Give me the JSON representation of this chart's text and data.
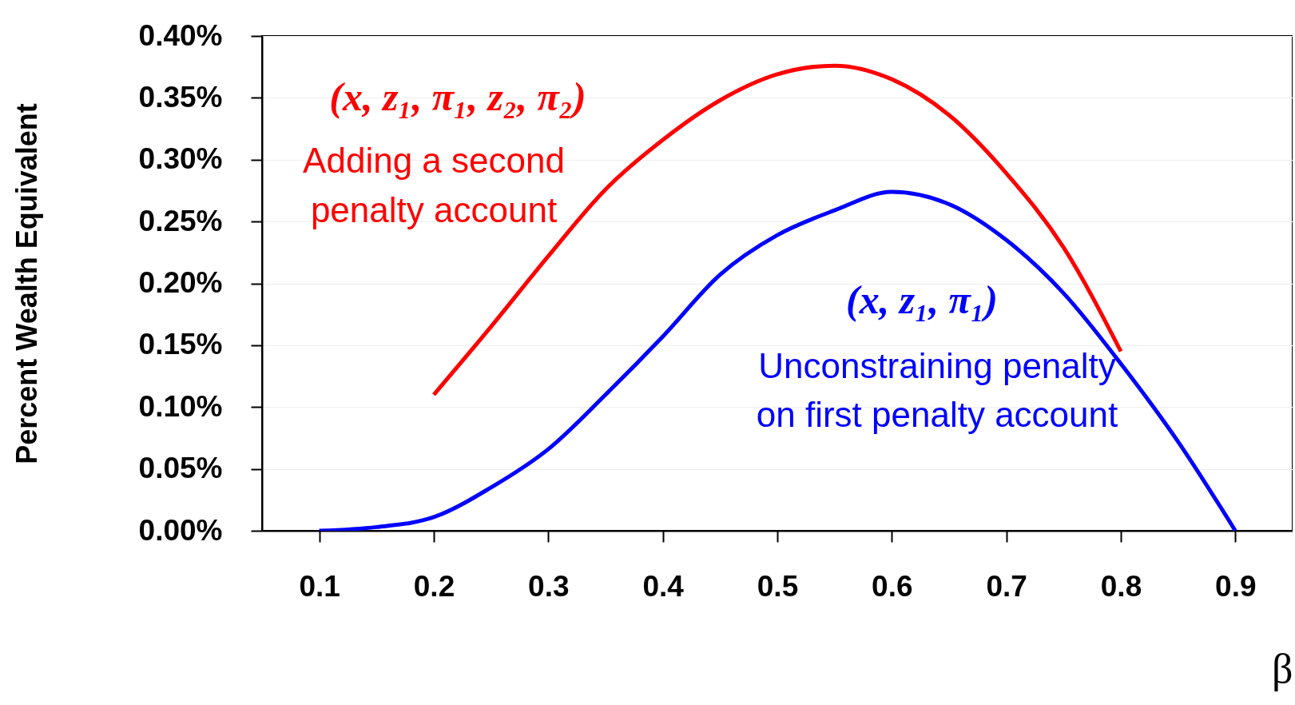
{
  "chart_data": {
    "type": "line",
    "xlabel": "β",
    "ylabel": "Percent Wealth Equivalent",
    "xlim": [
      0.05,
      0.95
    ],
    "xticks": [
      0.1,
      0.2,
      0.3,
      0.4,
      0.5,
      0.6,
      0.7,
      0.8,
      0.9
    ],
    "ylim": [
      0,
      0.4
    ],
    "yticks": [
      {
        "value": 0,
        "label": "0.00%"
      },
      {
        "value": 0.05,
        "label": "0.05%"
      },
      {
        "value": 0.1,
        "label": "0.10%"
      },
      {
        "value": 0.15,
        "label": "0.15%"
      },
      {
        "value": 0.2,
        "label": "0.20%"
      },
      {
        "value": 0.25,
        "label": "0.25%"
      },
      {
        "value": 0.3,
        "label": "0.30%"
      },
      {
        "value": 0.35,
        "label": "0.35%"
      },
      {
        "value": 0.4,
        "label": "0.40%"
      }
    ],
    "grid": "y",
    "legend": false,
    "marker": "none",
    "line_style": "solid",
    "series": [
      {
        "color": "#ff0000",
        "x": [
          0.2,
          0.25,
          0.3,
          0.35,
          0.4,
          0.45,
          0.5,
          0.55,
          0.6,
          0.65,
          0.7,
          0.75,
          0.8
        ],
        "values": [
          0.11,
          0.165,
          0.222,
          0.276,
          0.316,
          0.348,
          0.369,
          0.376,
          0.365,
          0.336,
          0.289,
          0.229,
          0.145
        ]
      },
      {
        "color": "#0000ff",
        "x": [
          0.1,
          0.15,
          0.2,
          0.25,
          0.3,
          0.35,
          0.4,
          0.45,
          0.5,
          0.55,
          0.6,
          0.65,
          0.7,
          0.75,
          0.8,
          0.85,
          0.9
        ],
        "values": [
          0.0,
          0.003,
          0.011,
          0.035,
          0.066,
          0.11,
          0.157,
          0.207,
          0.239,
          0.259,
          0.274,
          0.264,
          0.235,
          0.192,
          0.135,
          0.072,
          0.0
        ]
      }
    ],
    "annotations": [
      "(x, z₁, π₁, z₂, π₂)",
      "Adding a second",
      "penalty account",
      "(x, z₁, π₁)",
      "Unconstraining penalty",
      "on first penalty account"
    ]
  }
}
